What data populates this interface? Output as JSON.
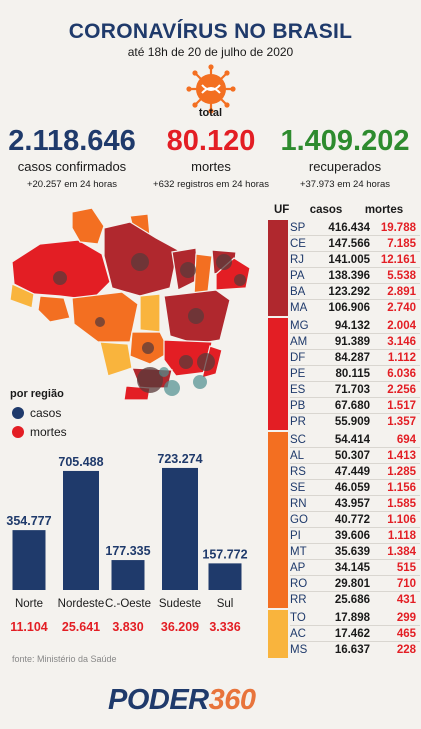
{
  "header": {
    "title": "CORONAVÍRUS NO BRASIL",
    "subtitle": "até 18h de 20 de julho de 2020",
    "total_label": "total"
  },
  "totals": {
    "cases": {
      "value": "2.118.646",
      "label": "casos confirmados",
      "sub": "+20.257 em 24 horas"
    },
    "deaths": {
      "value": "80.120",
      "label": "mortes",
      "sub": "+632 registros em 24 horas"
    },
    "recovered": {
      "value": "1.409.202",
      "label": "recuperados",
      "sub": "+37.973 em 24 horas"
    }
  },
  "legend": {
    "title": "por região",
    "cases": "casos",
    "deaths": "mortes"
  },
  "colors": {
    "navy": "#1f3a6b",
    "red": "#e31e24",
    "green": "#2e8b2e",
    "tier1": "#b0282e",
    "tier2": "#e31e24",
    "tier3": "#f36f21",
    "tier4": "#f9b43d"
  },
  "chart_data": {
    "type": "bar",
    "categories": [
      "Norte",
      "Nordeste",
      "C.-Oeste",
      "Sudeste",
      "Sul"
    ],
    "series": [
      {
        "name": "casos",
        "values": [
          354777,
          705488,
          177335,
          723274,
          157772
        ]
      },
      {
        "name": "mortes",
        "values": [
          11104,
          25641,
          3830,
          36209,
          3336
        ]
      }
    ],
    "value_labels": [
      "354.777",
      "705.488",
      "177.335",
      "723.274",
      "157.772"
    ],
    "death_labels": [
      "11.104",
      "25.641",
      "3.830",
      "36.209",
      "3.336"
    ]
  },
  "table": {
    "headers": [
      "UF",
      "casos",
      "mortes"
    ],
    "groups": [
      {
        "tier": "tier1",
        "rows": [
          [
            "SP",
            "416.434",
            "19.788"
          ],
          [
            "CE",
            "147.566",
            "7.185"
          ],
          [
            "RJ",
            "141.005",
            "12.161"
          ],
          [
            "PA",
            "138.396",
            "5.538"
          ],
          [
            "BA",
            "123.292",
            "2.891"
          ],
          [
            "MA",
            "106.906",
            "2.740"
          ]
        ]
      },
      {
        "tier": "tier2",
        "rows": [
          [
            "MG",
            "94.132",
            "2.004"
          ],
          [
            "AM",
            "91.389",
            "3.146"
          ],
          [
            "DF",
            "84.287",
            "1.112"
          ],
          [
            "PE",
            "80.115",
            "6.036"
          ],
          [
            "ES",
            "71.703",
            "2.256"
          ],
          [
            "PB",
            "67.680",
            "1.517"
          ],
          [
            "PR",
            "55.909",
            "1.357"
          ]
        ]
      },
      {
        "tier": "tier3",
        "rows": [
          [
            "SC",
            "54.414",
            "694"
          ],
          [
            "AL",
            "50.307",
            "1.413"
          ],
          [
            "RS",
            "47.449",
            "1.285"
          ],
          [
            "SE",
            "46.059",
            "1.156"
          ],
          [
            "RN",
            "43.957",
            "1.585"
          ],
          [
            "GO",
            "40.772",
            "1.106"
          ],
          [
            "PI",
            "39.606",
            "1.118"
          ],
          [
            "MT",
            "35.639",
            "1.384"
          ],
          [
            "AP",
            "34.145",
            "515"
          ],
          [
            "RO",
            "29.801",
            "710"
          ],
          [
            "RR",
            "25.686",
            "431"
          ]
        ]
      },
      {
        "tier": "tier4",
        "rows": [
          [
            "TO",
            "17.898",
            "299"
          ],
          [
            "AC",
            "17.462",
            "465"
          ],
          [
            "MS",
            "16.637",
            "228"
          ]
        ]
      }
    ]
  },
  "footer": {
    "source": "fonte: Ministério da Saúde",
    "brand_a": "PODER",
    "brand_b": "360"
  }
}
